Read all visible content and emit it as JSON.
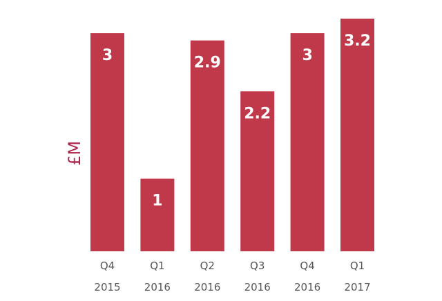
{
  "chart_data": {
    "type": "bar",
    "title": "",
    "xlabel": "",
    "ylabel": "£M",
    "ylim": [
      0,
      3.2
    ],
    "grid": false,
    "bar_color": "#c0394a",
    "value_label_color": "#ffffff",
    "ylabel_color": "#b0234a",
    "categories": [
      [
        "Q4",
        "2015"
      ],
      [
        "Q1",
        "2016"
      ],
      [
        "Q2",
        "2016"
      ],
      [
        "Q3",
        "2016"
      ],
      [
        "Q4",
        "2016"
      ],
      [
        "Q1",
        "2017"
      ]
    ],
    "values": [
      3,
      1,
      2.9,
      2.2,
      3,
      3.2
    ],
    "value_labels": [
      "3",
      "1",
      "2.9",
      "2.2",
      "3",
      "3.2"
    ]
  }
}
